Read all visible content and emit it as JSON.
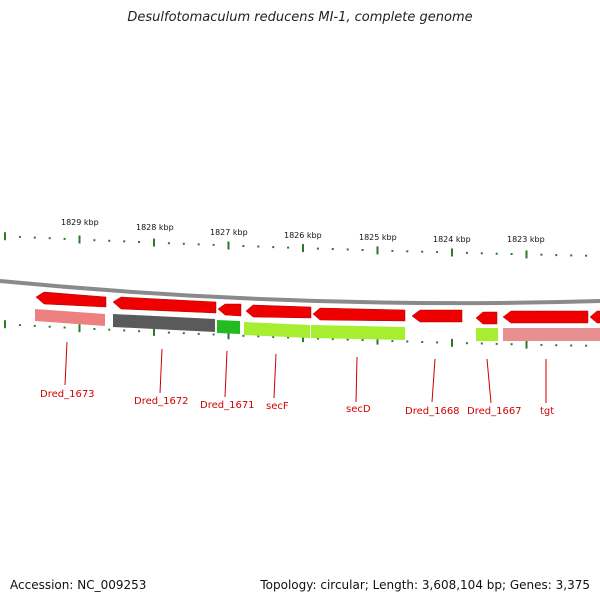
{
  "title": "Desulfotomaculum reducens MI-1, complete genome",
  "footer": {
    "accession": "Accession: NC_009253",
    "topology": "Topology: circular; Length: 3,608,104 bp; Genes: 3,375"
  },
  "kbp_labels": [
    "1829 kbp",
    "1828 kbp",
    "1827 kbp",
    "1826 kbp",
    "1825 kbp",
    "1824 kbp",
    "1823 kbp"
  ],
  "colors": {
    "gene_red": "#ee0000",
    "backbone": "#888888",
    "tick_green": "#2a7a2a",
    "label_red": "#cc0000",
    "pink_track": "#e87070",
    "gray_track": "#555555",
    "green_track": "#22bb22",
    "lime_track": "#99ee22"
  },
  "genes": [
    {
      "name": "Dred_1673",
      "label": "Dred_1673"
    },
    {
      "name": "Dred_1672",
      "label": "Dred_1672"
    },
    {
      "name": "Dred_1671",
      "label": "Dred_1671"
    },
    {
      "name": "secF",
      "label": "secF"
    },
    {
      "name": "secD",
      "label": "secD"
    },
    {
      "name": "Dred_1668",
      "label": "Dred_1668"
    },
    {
      "name": "Dred_1667",
      "label": "Dred_1667"
    },
    {
      "name": "tgt",
      "label": "tgt"
    }
  ]
}
